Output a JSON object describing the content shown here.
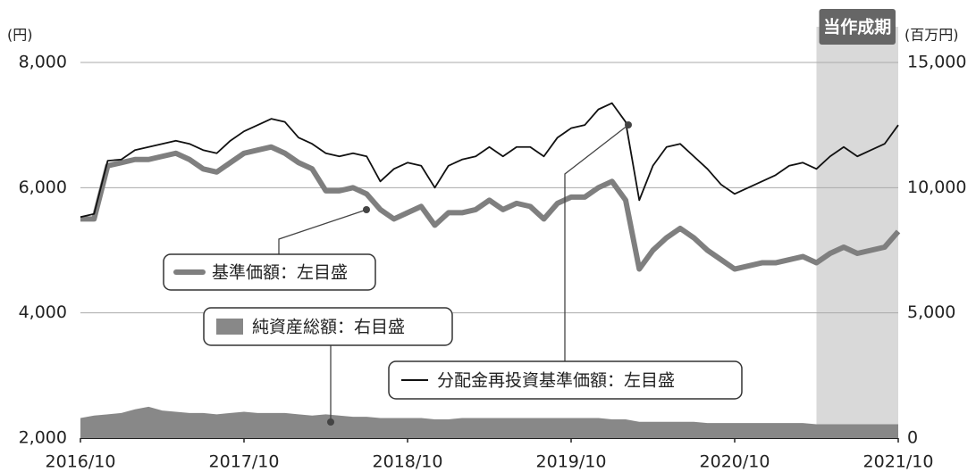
{
  "chart_data": {
    "type": "line",
    "left_unit": "(円)",
    "right_unit": "(百万円)",
    "period": {
      "label": "当作成期",
      "start": "2021/4",
      "end": "2021/10"
    },
    "x": [
      "2016/10",
      "2016/11",
      "2016/12",
      "2017/1",
      "2017/2",
      "2017/3",
      "2017/4",
      "2017/5",
      "2017/6",
      "2017/7",
      "2017/8",
      "2017/9",
      "2017/10",
      "2017/11",
      "2017/12",
      "2018/1",
      "2018/2",
      "2018/3",
      "2018/4",
      "2018/5",
      "2018/6",
      "2018/7",
      "2018/8",
      "2018/9",
      "2018/10",
      "2018/11",
      "2018/12",
      "2019/1",
      "2019/2",
      "2019/3",
      "2019/4",
      "2019/5",
      "2019/6",
      "2019/7",
      "2019/8",
      "2019/9",
      "2019/10",
      "2019/11",
      "2019/12",
      "2020/1",
      "2020/2",
      "2020/3",
      "2020/4",
      "2020/5",
      "2020/6",
      "2020/7",
      "2020/8",
      "2020/9",
      "2020/10",
      "2020/11",
      "2020/12",
      "2021/1",
      "2021/2",
      "2021/3",
      "2021/4",
      "2021/5",
      "2021/6",
      "2021/7",
      "2021/8",
      "2021/9",
      "2021/10"
    ],
    "xticks": [
      "2016/10",
      "2017/10",
      "2018/10",
      "2019/10",
      "2020/10",
      "2021/10"
    ],
    "ylim": [
      2000,
      8000
    ],
    "yticks": [
      {
        "value": 2000,
        "label": "2,000"
      },
      {
        "value": 4000,
        "label": "4,000"
      },
      {
        "value": 6000,
        "label": "6,000"
      },
      {
        "value": 8000,
        "label": "8,000"
      }
    ],
    "y2lim": [
      0,
      15000
    ],
    "y2ticks": [
      0,
      {
        "value": 5000,
        "label": "5,000"
      },
      {
        "value": 10000,
        "label": "10,000"
      },
      {
        "value": 15000,
        "label": "15,000"
      }
    ],
    "grid": true,
    "series": [
      {
        "name": "基準価額：左目盛",
        "color": "#7f7f7f",
        "values": [
          5500,
          5500,
          6350,
          6400,
          6450,
          6450,
          6500,
          6550,
          6450,
          6300,
          6250,
          6400,
          6550,
          6600,
          6650,
          6550,
          6400,
          6300,
          5950,
          5950,
          6000,
          5900,
          5650,
          5500,
          5600,
          5700,
          5400,
          5600,
          5600,
          5650,
          5800,
          5650,
          5750,
          5700,
          5500,
          5750,
          5850,
          5850,
          6000,
          6100,
          5800,
          4700,
          5000,
          5200,
          5350,
          5200,
          5000,
          4850,
          4700,
          4750,
          4800,
          4800,
          4850,
          4900,
          4800,
          4950,
          5050,
          4950,
          5000,
          5050,
          5300
        ]
      },
      {
        "name": "純資産総額：右目盛",
        "color": "#888888",
        "axis": "y2",
        "values": [
          800,
          900,
          950,
          1000,
          1150,
          1250,
          1100,
          1050,
          1000,
          1000,
          950,
          1000,
          1050,
          1000,
          1000,
          1000,
          950,
          900,
          950,
          900,
          850,
          850,
          800,
          800,
          800,
          800,
          750,
          750,
          800,
          800,
          800,
          800,
          800,
          800,
          800,
          800,
          800,
          800,
          800,
          750,
          750,
          650,
          650,
          650,
          650,
          650,
          600,
          600,
          600,
          600,
          600,
          600,
          600,
          600,
          550,
          550,
          550,
          550,
          550,
          550,
          550
        ]
      },
      {
        "name": "分配金再投資基準価額：左目盛",
        "color": "#111111",
        "values": [
          5530,
          5580,
          6430,
          6450,
          6600,
          6650,
          6700,
          6750,
          6700,
          6600,
          6550,
          6750,
          6900,
          7000,
          7100,
          7050,
          6800,
          6700,
          6550,
          6500,
          6550,
          6500,
          6100,
          6300,
          6400,
          6350,
          6000,
          6350,
          6450,
          6500,
          6650,
          6500,
          6650,
          6650,
          6500,
          6800,
          6950,
          7000,
          7250,
          7350,
          7050,
          5800,
          6350,
          6650,
          6700,
          6500,
          6300,
          6050,
          5900,
          6000,
          6100,
          6200,
          6350,
          6400,
          6300,
          6500,
          6650,
          6500,
          6600,
          6700,
          7000
        ]
      }
    ]
  }
}
